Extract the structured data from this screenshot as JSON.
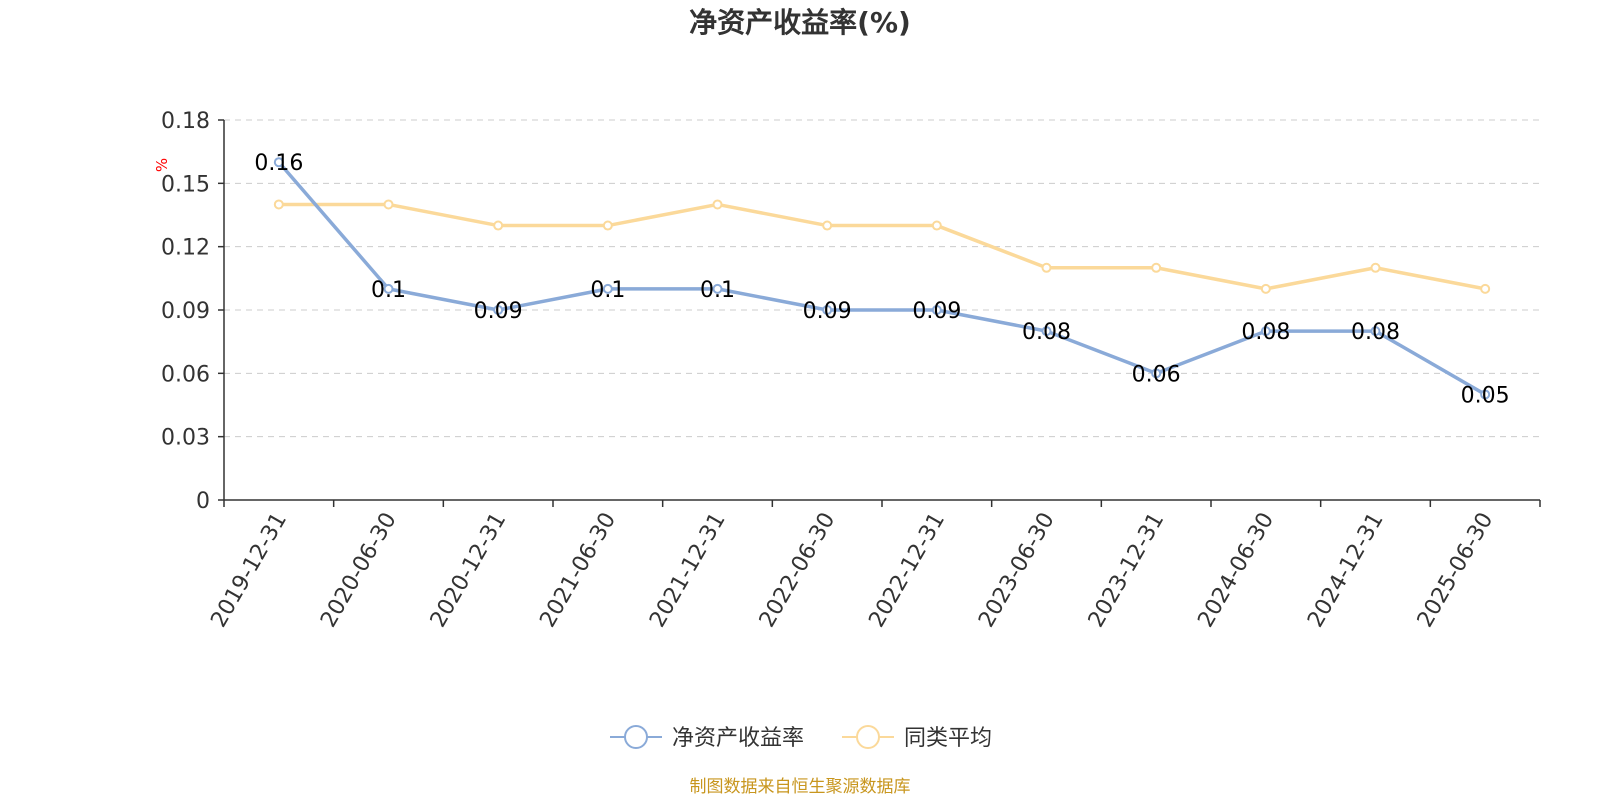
{
  "chart_data": {
    "type": "line",
    "title": "净资产收益率(%)",
    "ylabel": "%",
    "xlabel": "",
    "categories": [
      "2019-12-31",
      "2020-06-30",
      "2020-12-31",
      "2021-06-30",
      "2021-12-31",
      "2022-06-30",
      "2022-12-31",
      "2023-06-30",
      "2023-12-31",
      "2024-06-30",
      "2024-12-31",
      "2025-06-30"
    ],
    "ylim": [
      0,
      0.18
    ],
    "yticks": [
      "0",
      "0.03",
      "0.06",
      "0.09",
      "0.12",
      "0.15",
      "0.18"
    ],
    "grid": true,
    "legend_position": "bottom",
    "series": [
      {
        "name": "净资产收益率",
        "color": "#8aaad8",
        "show_labels": true,
        "values": [
          0.16,
          0.1,
          0.09,
          0.1,
          0.1,
          0.09,
          0.09,
          0.08,
          0.06,
          0.08,
          0.08,
          0.05
        ],
        "labels": [
          "0.16",
          "0.1",
          "0.09",
          "0.1",
          "0.1",
          "0.09",
          "0.09",
          "0.08",
          "0.06",
          "0.08",
          "0.08",
          "0.05"
        ]
      },
      {
        "name": "同类平均",
        "color": "#fbd99a",
        "show_labels": false,
        "values": [
          0.14,
          0.14,
          0.13,
          0.13,
          0.14,
          0.13,
          0.13,
          0.11,
          0.11,
          0.1,
          0.11,
          0.1
        ]
      }
    ]
  },
  "source": "制图数据来自恒生聚源数据库"
}
